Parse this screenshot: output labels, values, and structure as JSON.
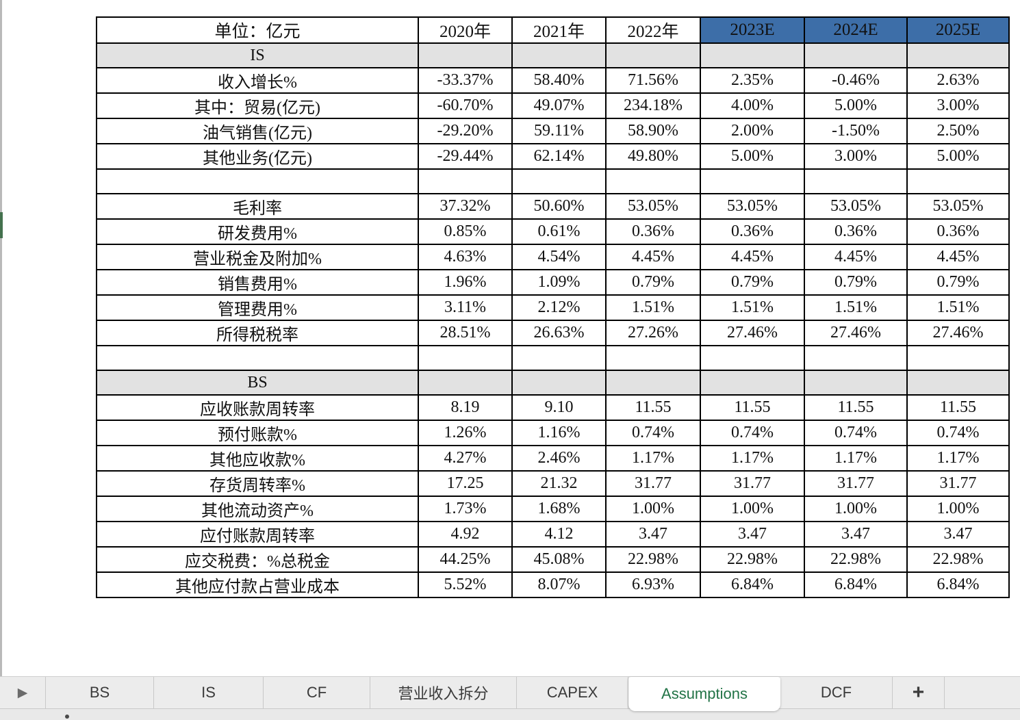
{
  "colors": {
    "estimate_header_bg": "#3D6EA8",
    "estimate_header_text": "#FFFFFF",
    "section_row_bg": "#E2E2E2",
    "active_tab_text": "#217346",
    "left_edge_accent": "#44714E"
  },
  "table": {
    "header": {
      "unit_label": "单位：亿元",
      "columns": [
        {
          "label": "2020年",
          "highlight": false
        },
        {
          "label": "2021年",
          "highlight": false
        },
        {
          "label": "2022年",
          "highlight": false
        },
        {
          "label": "2023E",
          "highlight": true
        },
        {
          "label": "2024E",
          "highlight": true
        },
        {
          "label": "2025E",
          "highlight": true
        }
      ]
    },
    "rows": [
      {
        "type": "section",
        "label": "IS"
      },
      {
        "type": "data",
        "label": "收入增长%",
        "values": [
          "-33.37%",
          "58.40%",
          "71.56%",
          "2.35%",
          "-0.46%",
          "2.63%"
        ]
      },
      {
        "type": "data",
        "label": "其中：贸易(亿元)",
        "values": [
          "-60.70%",
          "49.07%",
          "234.18%",
          "4.00%",
          "5.00%",
          "3.00%"
        ]
      },
      {
        "type": "data",
        "label": "油气销售(亿元)",
        "label_align": "center",
        "values": [
          "-29.20%",
          "59.11%",
          "58.90%",
          "2.00%",
          "-1.50%",
          "2.50%"
        ]
      },
      {
        "type": "data",
        "label": "其他业务(亿元)",
        "label_align": "center",
        "values": [
          "-29.44%",
          "62.14%",
          "49.80%",
          "5.00%",
          "3.00%",
          "5.00%"
        ]
      },
      {
        "type": "empty"
      },
      {
        "type": "data",
        "label": "毛利率",
        "values": [
          "37.32%",
          "50.60%",
          "53.05%",
          "53.05%",
          "53.05%",
          "53.05%"
        ]
      },
      {
        "type": "data",
        "label": "研发费用%",
        "values": [
          "0.85%",
          "0.61%",
          "0.36%",
          "0.36%",
          "0.36%",
          "0.36%"
        ]
      },
      {
        "type": "data",
        "label": "营业税金及附加%",
        "values": [
          "4.63%",
          "4.54%",
          "4.45%",
          "4.45%",
          "4.45%",
          "4.45%"
        ]
      },
      {
        "type": "data",
        "label": "销售费用%",
        "values": [
          "1.96%",
          "1.09%",
          "0.79%",
          "0.79%",
          "0.79%",
          "0.79%"
        ]
      },
      {
        "type": "data",
        "label": "管理费用%",
        "values": [
          "3.11%",
          "2.12%",
          "1.51%",
          "1.51%",
          "1.51%",
          "1.51%"
        ]
      },
      {
        "type": "data",
        "label": "所得税税率",
        "values": [
          "28.51%",
          "26.63%",
          "27.26%",
          "27.46%",
          "27.46%",
          "27.46%"
        ]
      },
      {
        "type": "empty"
      },
      {
        "type": "section",
        "label": "BS"
      },
      {
        "type": "data",
        "label": "应收账款周转率",
        "values": [
          "8.19",
          "9.10",
          "11.55",
          "11.55",
          "11.55",
          "11.55"
        ]
      },
      {
        "type": "data",
        "label": "预付账款%",
        "values": [
          "1.26%",
          "1.16%",
          "0.74%",
          "0.74%",
          "0.74%",
          "0.74%"
        ]
      },
      {
        "type": "data",
        "label": "其他应收款%",
        "values": [
          "4.27%",
          "2.46%",
          "1.17%",
          "1.17%",
          "1.17%",
          "1.17%"
        ]
      },
      {
        "type": "data",
        "label": "存货周转率%",
        "values": [
          "17.25",
          "21.32",
          "31.77",
          "31.77",
          "31.77",
          "31.77"
        ]
      },
      {
        "type": "data",
        "label": "其他流动资产%",
        "values": [
          "1.73%",
          "1.68%",
          "1.00%",
          "1.00%",
          "1.00%",
          "1.00%"
        ]
      },
      {
        "type": "data",
        "label": "应付账款周转率",
        "values": [
          "4.92",
          "4.12",
          "3.47",
          "3.47",
          "3.47",
          "3.47"
        ]
      },
      {
        "type": "data",
        "label": "应交税费：%总税金",
        "values": [
          "44.25%",
          "45.08%",
          "22.98%",
          "22.98%",
          "22.98%",
          "22.98%"
        ]
      },
      {
        "type": "data",
        "label": "其他应付款占营业成本",
        "values": [
          "5.52%",
          "8.07%",
          "6.93%",
          "6.84%",
          "6.84%",
          "6.84%"
        ]
      }
    ]
  },
  "sheet_bar": {
    "nav_arrow": "▶",
    "tabs": [
      {
        "label": "BS",
        "active": false
      },
      {
        "label": "IS",
        "active": false
      },
      {
        "label": "CF",
        "active": false
      },
      {
        "label": "营业收入拆分",
        "active": false
      },
      {
        "label": "CAPEX",
        "active": false
      },
      {
        "label": "Assumptions",
        "active": true
      },
      {
        "label": "DCF",
        "active": false
      }
    ],
    "add_tab_label": "+"
  }
}
